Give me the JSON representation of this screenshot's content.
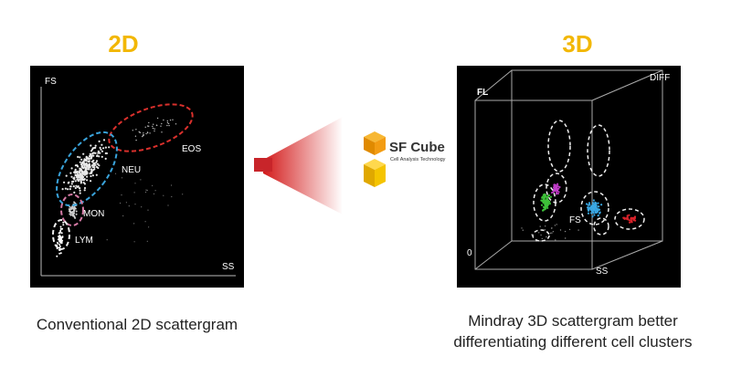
{
  "left": {
    "title": "2D",
    "axis_y": "FS",
    "axis_x": "SS",
    "clusters": {
      "eos": "EOS",
      "neu": "NEU",
      "mon": "MON",
      "lym": "LYM"
    },
    "caption": "Conventional 2D scattergram"
  },
  "center": {
    "logo_title": "SF Cube",
    "logo_subtitle": "Cell Analysis Technology"
  },
  "right": {
    "title": "3D",
    "corner_label": "DIFF",
    "axis_fl": "FL",
    "axis_fs": "FS",
    "axis_ss": "SS",
    "origin": "0",
    "caption_line1": "Mindray 3D scattergram better",
    "caption_line2": "differentiating different cell clusters"
  }
}
